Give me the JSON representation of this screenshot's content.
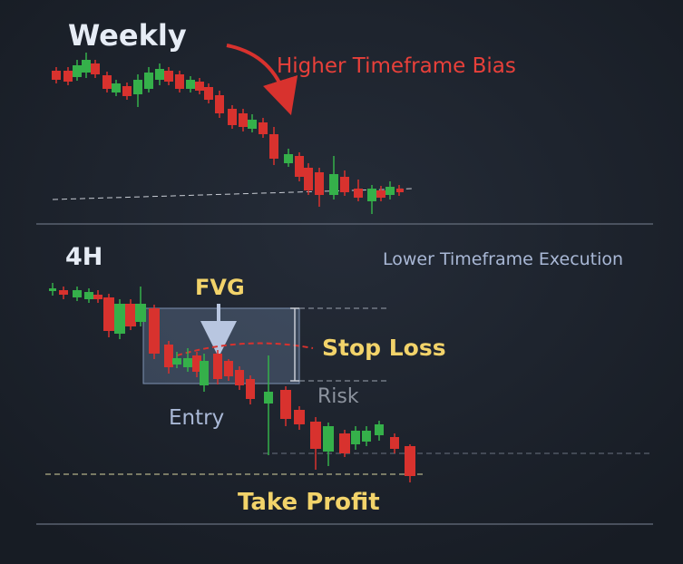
{
  "weekly": {
    "title": "Weekly",
    "annotation": "Higher Timeframe Bias"
  },
  "lower": {
    "title": "4H",
    "subtitle": "Lower Timeframe Execution",
    "fvg": "FVG",
    "stop_loss": "Stop Loss",
    "risk": "Risk",
    "entry": "Entry",
    "take_profit": "Take Profit"
  }
}
